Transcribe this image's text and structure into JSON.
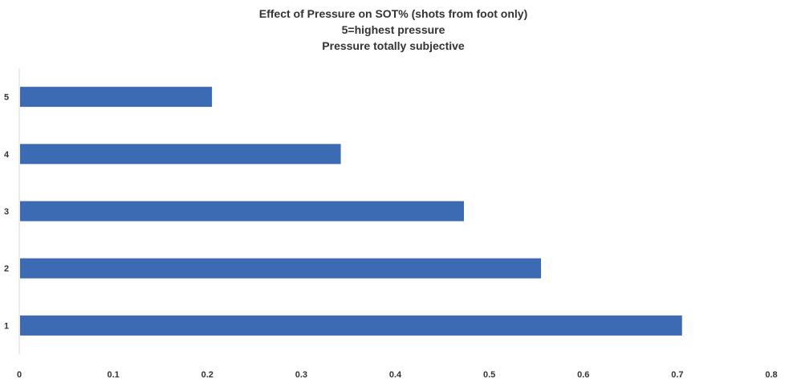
{
  "chart_data": {
    "type": "bar",
    "orientation": "horizontal",
    "title": [
      "Effect of Pressure on SOT% (shots from foot only)",
      "5=highest pressure",
      "Pressure totally subjective"
    ],
    "categories": [
      "1",
      "2",
      "3",
      "4",
      "5"
    ],
    "values": [
      0.705,
      0.555,
      0.473,
      0.342,
      0.205
    ],
    "xlim": [
      0,
      0.8
    ],
    "x_ticks": [
      "0",
      "0.1",
      "0.2",
      "0.3",
      "0.4",
      "0.5",
      "0.6",
      "0.7",
      "0.8"
    ],
    "x_tick_values": [
      0,
      0.1,
      0.2,
      0.3,
      0.4,
      0.5,
      0.6,
      0.7,
      0.8
    ],
    "bar_color": "#3d6bb3",
    "grid": false,
    "legend": "none"
  }
}
